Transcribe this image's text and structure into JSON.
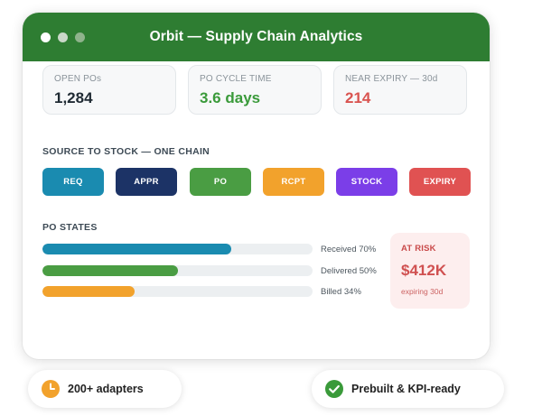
{
  "colors": {
    "brand_green": "#2e7d32",
    "teal": "#1a8bb0",
    "navy": "#1c3366",
    "green": "#4a9d43",
    "orange": "#f2a22c",
    "purple": "#7b3ee8",
    "red": "#e05252",
    "success_text": "#3a9a3a",
    "danger_text": "#d9534f"
  },
  "window": {
    "title": "Orbit — Supply Chain Analytics",
    "dots": [
      "#ffffff",
      "#c9d8c8",
      "#8fb38c"
    ]
  },
  "kpis": [
    {
      "label": "OPEN POs",
      "value": "1,284",
      "value_color": "#1f2a33"
    },
    {
      "label": "PO CYCLE TIME",
      "value": "3.6 days",
      "value_color": "#3a9a3a"
    },
    {
      "label": "NEAR EXPIRY — 30d",
      "value": "214",
      "value_color": "#d9534f"
    }
  ],
  "chain": {
    "title": "SOURCE TO STOCK — ONE CHAIN",
    "stages": [
      {
        "label": "REQ",
        "color": "#1a8bb0"
      },
      {
        "label": "APPR",
        "color": "#1c3366"
      },
      {
        "label": "PO",
        "color": "#4a9d43"
      },
      {
        "label": "RCPT",
        "color": "#f2a22c"
      },
      {
        "label": "STOCK",
        "color": "#7b3ee8"
      },
      {
        "label": "EXPIRY",
        "color": "#e05252"
      }
    ]
  },
  "po_states": {
    "title": "PO STATES",
    "bars": [
      {
        "label": "Received 70%",
        "fraction": 0.7,
        "color": "#1a8bb0"
      },
      {
        "label": "Delivered 50%",
        "fraction": 0.5,
        "color": "#4a9d43"
      },
      {
        "label": "Billed 34%",
        "fraction": 0.34,
        "color": "#f2a22c"
      }
    ]
  },
  "risk": {
    "label": "AT RISK",
    "value": "$412K",
    "sub": "expiring 30d"
  },
  "badges": [
    {
      "text": "200+ adapters",
      "icon": "clock-icon",
      "icon_color": "#f2a22c"
    },
    {
      "text": "Prebuilt & KPI-ready",
      "icon": "check-circle-icon",
      "icon_color": "#3a9a3a"
    }
  ]
}
